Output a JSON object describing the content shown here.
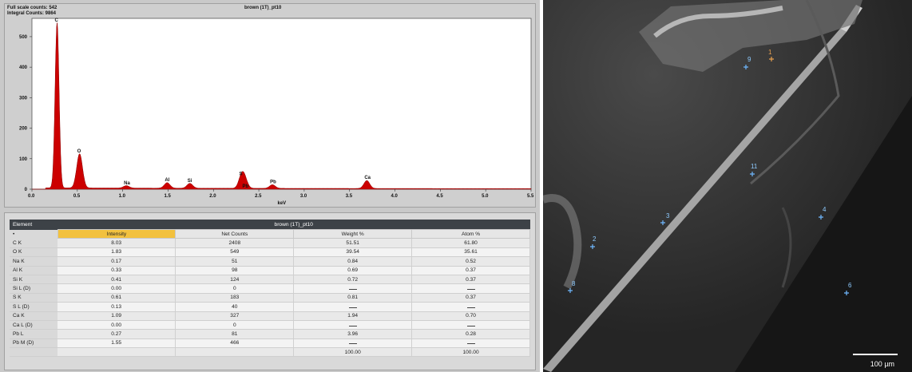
{
  "spectrum": {
    "full_scale": "Full scale counts: 542",
    "integral": "Integral Counts: 9864",
    "title": "brown (1T)_pt10"
  },
  "chart_data": {
    "type": "line",
    "title": "brown (1T)_pt10",
    "xlabel": "keV",
    "ylabel": "",
    "xlim": [
      0.0,
      5.5
    ],
    "ylim": [
      0,
      560
    ],
    "x_ticks": [
      "0.0",
      "0.5",
      "1.0",
      "1.5",
      "2.0",
      "2.5",
      "3.0",
      "3.5",
      "4.0",
      "4.5",
      "5.0",
      "5.5"
    ],
    "y_ticks": [
      "0",
      "100",
      "200",
      "300",
      "400",
      "500"
    ],
    "peaks": [
      {
        "label": "C",
        "x": 0.277,
        "y": 542
      },
      {
        "label": "O",
        "x": 0.525,
        "y": 112
      },
      {
        "label": "Na",
        "x": 1.04,
        "y": 8
      },
      {
        "label": "Al",
        "x": 1.49,
        "y": 18
      },
      {
        "label": "Si",
        "x": 1.74,
        "y": 16
      },
      {
        "label": "S",
        "x": 2.31,
        "y": 38
      },
      {
        "label": "Pb",
        "x": 2.345,
        "y": 26
      },
      {
        "label": "Pb",
        "x": 2.65,
        "y": 12
      },
      {
        "label": "Ca",
        "x": 3.69,
        "y": 26
      }
    ],
    "fill_color": "#cc0000"
  },
  "table": {
    "element_header": "Element",
    "title": "brown (1T)_pt10",
    "columns": [
      "Intensity",
      "Net Counts",
      "Weight %",
      "Atom %"
    ],
    "rows": [
      [
        "C K",
        "8.03",
        "2408",
        "51.51",
        "61.80"
      ],
      [
        "O K",
        "1.83",
        "549",
        "39.54",
        "35.61"
      ],
      [
        "Na K",
        "0.17",
        "51",
        "0.84",
        "0.52"
      ],
      [
        "Al K",
        "0.33",
        "98",
        "0.69",
        "0.37"
      ],
      [
        "Si K",
        "0.41",
        "124",
        "0.72",
        "0.37"
      ],
      [
        "Si L (D)",
        "0.00",
        "0",
        "",
        ""
      ],
      [
        "S K",
        "0.61",
        "183",
        "0.81",
        "0.37"
      ],
      [
        "S L (D)",
        "0.13",
        "40",
        "",
        ""
      ],
      [
        "Ca K",
        "1.09",
        "327",
        "1.94",
        "0.70"
      ],
      [
        "Ca L (D)",
        "0.00",
        "0",
        "",
        ""
      ],
      [
        "Pb L",
        "0.27",
        "81",
        "3.96",
        "0.28"
      ],
      [
        "Pb M (D)",
        "1.55",
        "466",
        "",
        ""
      ],
      [
        "",
        "",
        "",
        "100.00",
        "100.00"
      ]
    ]
  },
  "sem": {
    "scale_label": "100 µm",
    "points": [
      {
        "label": "1",
        "color": "orange"
      },
      {
        "label": "2",
        "color": "blue"
      },
      {
        "label": "3",
        "color": "blue"
      },
      {
        "label": "4",
        "color": "blue"
      },
      {
        "label": "6",
        "color": "blue"
      },
      {
        "label": "8",
        "color": "blue"
      },
      {
        "label": "9",
        "color": "blue"
      },
      {
        "label": "11",
        "color": "blue"
      }
    ]
  }
}
